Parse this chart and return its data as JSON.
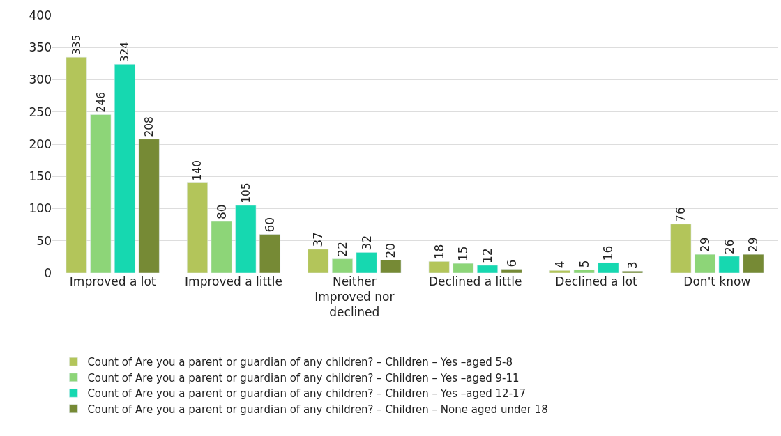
{
  "chart_data": {
    "type": "bar",
    "categories": [
      "Improved a lot",
      "Improved a little",
      "Neither Improved nor declined",
      "Declined a little",
      "Declined a lot",
      "Don't know"
    ],
    "series": [
      {
        "name": "Count of Are you a parent or guardian of any children? – Children – Yes –aged 5-8",
        "color": "#b3c55a",
        "values": [
          335,
          140,
          37,
          18,
          4,
          76
        ]
      },
      {
        "name": "Count of Are you a parent or guardian of any children? – Children – Yes –aged 9-11",
        "color": "#8dd578",
        "values": [
          246,
          80,
          22,
          15,
          5,
          29
        ]
      },
      {
        "name": "Count of Are you a parent or guardian of any children? – Children – Yes –aged 12-17",
        "color": "#16d8b0",
        "values": [
          324,
          105,
          32,
          12,
          16,
          26
        ]
      },
      {
        "name": "Count of Are you a parent or guardian of any children? – Children – None aged under 18",
        "color": "#768a35",
        "values": [
          208,
          60,
          20,
          6,
          3,
          29
        ]
      }
    ],
    "ylim": [
      0,
      400
    ],
    "yticks": [
      0,
      50,
      100,
      150,
      200,
      250,
      300,
      350,
      400
    ],
    "grid": "y",
    "legend": "bottom",
    "data_labels": true
  }
}
